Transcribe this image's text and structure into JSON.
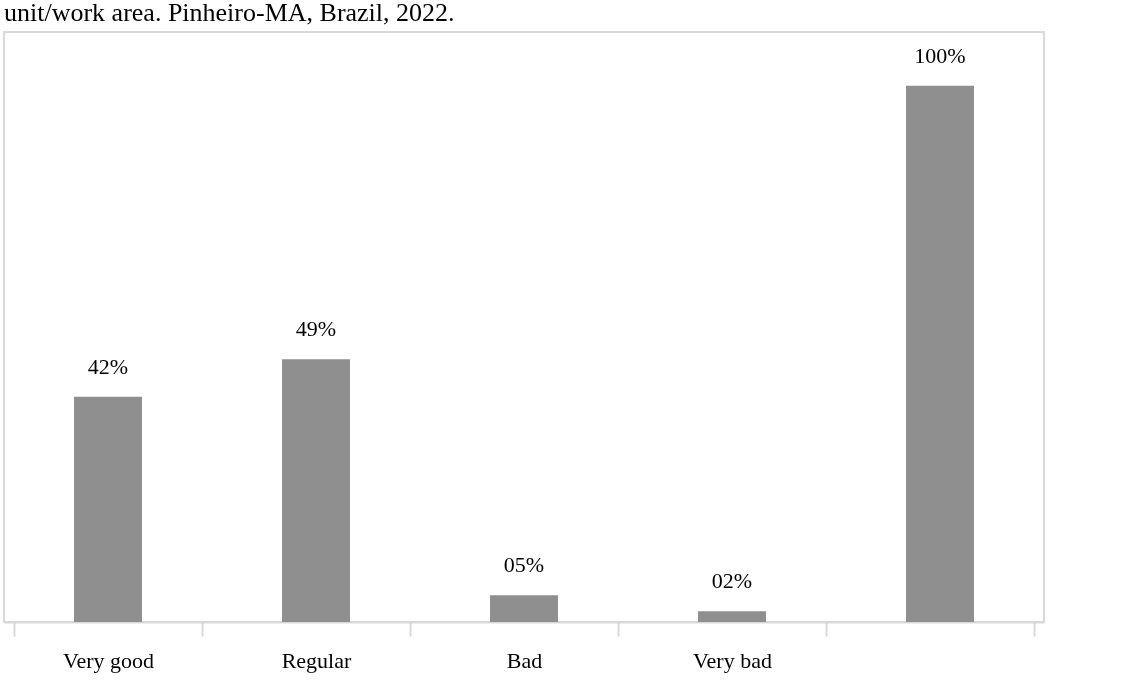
{
  "chart_data": {
    "type": "bar",
    "title": "unit/work area. Pinheiro-MA, Brazil, 2022.",
    "categories": [
      "Very good",
      "Regular",
      "Bad",
      "Very bad",
      null
    ],
    "values": [
      42,
      49,
      5,
      2,
      100
    ],
    "value_labels": [
      "42%",
      "49%",
      "05%",
      "02%",
      "100%"
    ],
    "color": "#8f8f8f",
    "grid": false
  }
}
